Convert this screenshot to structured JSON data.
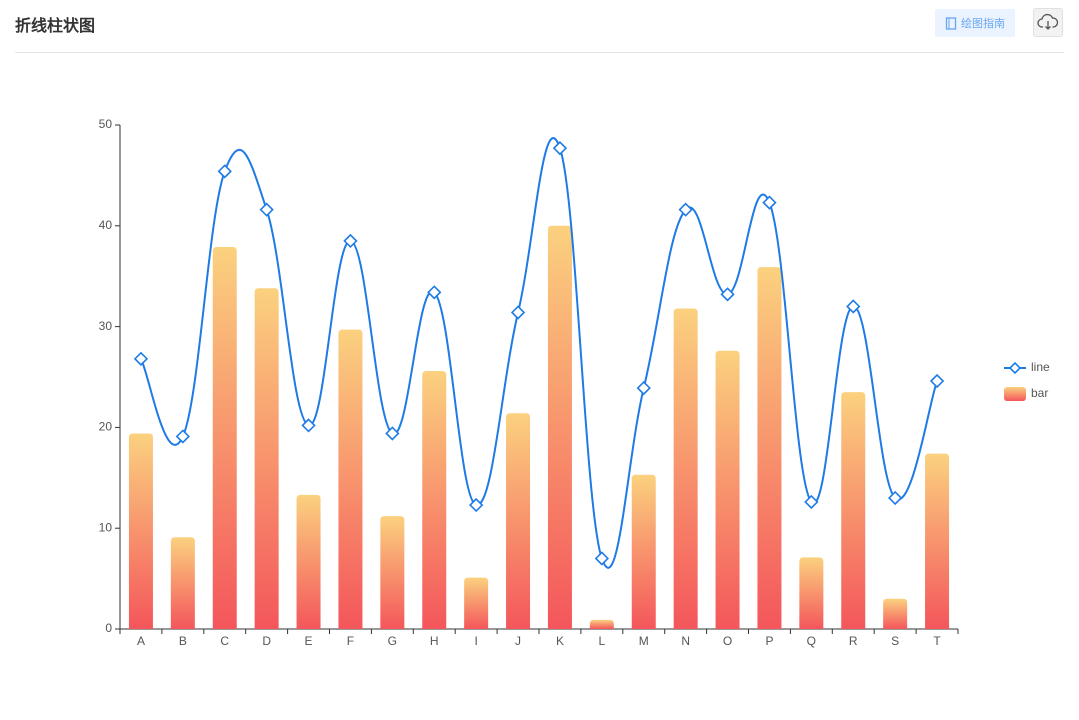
{
  "header": {
    "title": "折线柱状图",
    "guide_button": "绘图指南"
  },
  "chart_data": {
    "type": "bar",
    "categories": [
      "A",
      "B",
      "C",
      "D",
      "E",
      "F",
      "G",
      "H",
      "I",
      "J",
      "K",
      "L",
      "M",
      "N",
      "O",
      "P",
      "Q",
      "R",
      "S",
      "T"
    ],
    "series": [
      {
        "name": "line",
        "type": "line",
        "color": "#1e7be6",
        "values": [
          26.8,
          19.1,
          45.4,
          41.6,
          20.2,
          38.5,
          19.4,
          33.4,
          12.3,
          31.4,
          47.7,
          7.0,
          23.9,
          41.6,
          33.2,
          42.3,
          12.6,
          32.0,
          13.0,
          24.6
        ]
      },
      {
        "name": "bar",
        "type": "bar",
        "color": [
          "#fbd17f",
          "#f4565b"
        ],
        "values": [
          19.4,
          9.1,
          37.9,
          33.8,
          13.3,
          29.7,
          11.2,
          25.6,
          5.1,
          21.4,
          40,
          0.9,
          15.3,
          31.8,
          27.6,
          35.9,
          7.1,
          23.5,
          3.0,
          17.4
        ]
      }
    ],
    "ylim": [
      0,
      50
    ],
    "yticks": [
      0,
      10,
      20,
      30,
      40,
      50
    ],
    "grid": false,
    "legend": "right",
    "smooth": true
  }
}
